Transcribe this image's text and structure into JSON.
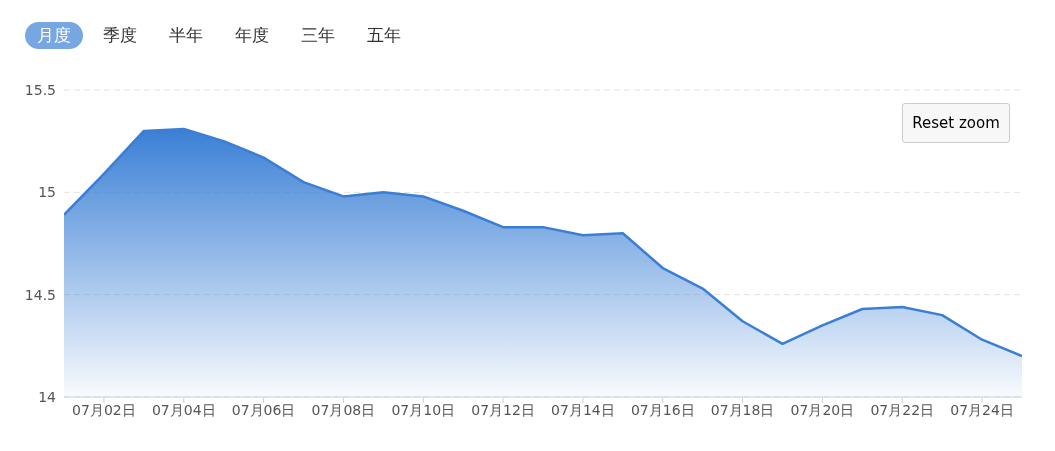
{
  "chart_data": {
    "type": "area",
    "categories": [
      null,
      "07月02日",
      null,
      "07月04日",
      null,
      "07月06日",
      null,
      "07月08日",
      null,
      "07月10日",
      null,
      "07月12日",
      null,
      "07月14日",
      null,
      "07月16日",
      null,
      "07月18日",
      null,
      "07月20日",
      null,
      "07月22日",
      null,
      "07月24日",
      null
    ],
    "series": [
      {
        "color": "#3a7fd5",
        "values": [
          14.89,
          15.09,
          15.3,
          15.31,
          15.25,
          15.17,
          15.05,
          14.98,
          15.0,
          14.98,
          14.91,
          14.83,
          14.83,
          14.79,
          14.8,
          14.63,
          14.53,
          14.37,
          14.26,
          14.35,
          14.43,
          14.44,
          14.4,
          14.28,
          14.2
        ]
      }
    ],
    "ylim": [
      14,
      15.5
    ],
    "yticks": [
      14,
      14.5,
      15,
      15.5
    ],
    "grid": "y",
    "legend": false,
    "marker": "none",
    "line_style": "solid",
    "annotations": [
      "月度",
      "季度",
      "半年",
      "年度",
      "三年",
      "五年",
      "Reset zoom"
    ]
  }
}
